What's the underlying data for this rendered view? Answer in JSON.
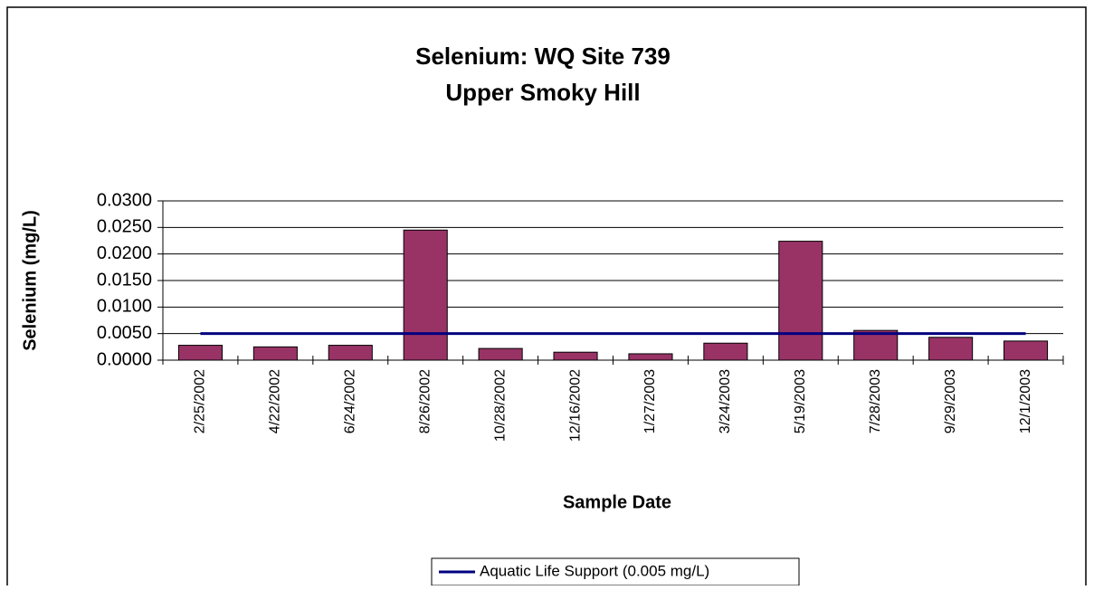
{
  "chart_data": {
    "type": "bar",
    "title": "Selenium: WQ Site 739",
    "subtitle": "Upper Smoky Hill",
    "x_label": "Sample Date",
    "y_label": "Selenium (mg/L)",
    "categories": [
      "2/25/2002",
      "4/22/2002",
      "6/24/2002",
      "8/26/2002",
      "10/28/2002",
      "12/16/2002",
      "1/27/2003",
      "3/24/2003",
      "5/19/2003",
      "7/28/2003",
      "9/29/2003",
      "12/1/2003"
    ],
    "series": [
      {
        "type": "bar",
        "color": "#993366",
        "values": [
          0.0028,
          0.0025,
          0.0028,
          0.0245,
          0.0022,
          0.0015,
          0.0012,
          0.0032,
          0.0224,
          0.0056,
          0.0043,
          0.0036
        ]
      },
      {
        "type": "line",
        "name": "Aquatic Life Support (0.005 mg/L)",
        "color": "#000080",
        "values": [
          0.005,
          0.005,
          0.005,
          0.005,
          0.005,
          0.005,
          0.005,
          0.005,
          0.005,
          0.005,
          0.005,
          0.005
        ]
      }
    ],
    "ylim": [
      0,
      0.03
    ],
    "yticks": [
      {
        "value": 0,
        "label": "0.0000"
      },
      {
        "value": 0.005,
        "label": "0.0050"
      },
      {
        "value": 0.01,
        "label": "0.0100"
      },
      {
        "value": 0.015,
        "label": "0.0150"
      },
      {
        "value": 0.02,
        "label": "0.0200"
      },
      {
        "value": 0.025,
        "label": "0.0250"
      },
      {
        "value": 0.03,
        "label": "0.0300"
      }
    ],
    "grid": true,
    "legend": "bottom"
  }
}
